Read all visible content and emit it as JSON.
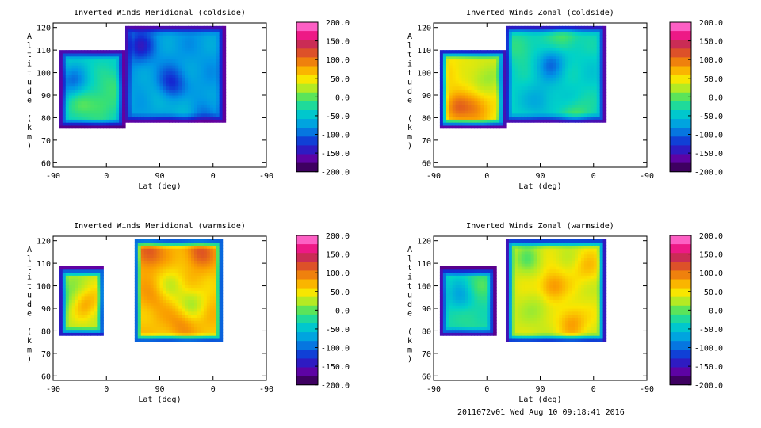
{
  "footer": "2011072v01 Wed Aug 10 09:18:41 2016",
  "chart_data": [
    {
      "type": "heatmap",
      "title": "Inverted Winds Meridional (coldside)",
      "xlabel": "Lat (deg)",
      "ylabel": "Altitude (km)",
      "x_ticks": [
        "-90",
        "0",
        "90",
        "0",
        "-90"
      ],
      "y_ticks": [
        60,
        70,
        80,
        90,
        100,
        110,
        120
      ],
      "ylim": [
        58,
        122
      ],
      "colorbar_ticks": [
        "200.0",
        "150.0",
        "100.0",
        "50.0",
        "0.0",
        "-50.0",
        "-100.0",
        "-150.0",
        "-200.0"
      ],
      "vmin": -200,
      "vmax": 200,
      "regions": [
        {
          "x": [
            -73,
            90
          ],
          "y": [
            76,
            110
          ],
          "base": -40,
          "anomalies": [
            [
              -40,
              96,
              -55
            ],
            [
              30,
              86,
              35
            ],
            [
              65,
              95,
              25
            ],
            [
              -20,
              86,
              30
            ]
          ]
        },
        {
          "x": [
            90,
            345
          ],
          "y": [
            78,
            121
          ],
          "base": -75,
          "anomalies": [
            [
              130,
              112,
              -60
            ],
            [
              210,
              95,
              -55
            ],
            [
              250,
              85,
              30
            ],
            [
              285,
              82,
              -30
            ],
            [
              170,
              90,
              20
            ]
          ]
        }
      ]
    },
    {
      "type": "heatmap",
      "title": "Inverted Winds Zonal (coldside)",
      "xlabel": "Lat (deg)",
      "ylabel": "Altitude (km)",
      "x_ticks": [
        "-90",
        "0",
        "90",
        "0",
        "-90"
      ],
      "y_ticks": [
        60,
        70,
        80,
        90,
        100,
        110,
        120
      ],
      "ylim": [
        58,
        122
      ],
      "colorbar_ticks": [
        "200.0",
        "150.0",
        "100.0",
        "50.0",
        "0.0",
        "-50.0",
        "-100.0",
        "-150.0",
        "-200.0"
      ],
      "vmin": -200,
      "vmax": 200,
      "regions": [
        {
          "x": [
            -73,
            90
          ],
          "y": [
            76,
            110
          ],
          "base": 40,
          "anomalies": [
            [
              -30,
              84,
              55
            ],
            [
              20,
              85,
              50
            ],
            [
              -45,
              100,
              20
            ],
            [
              40,
              98,
              -30
            ]
          ]
        },
        {
          "x": [
            90,
            345
          ],
          "y": [
            78,
            121
          ],
          "base": -40,
          "anomalies": [
            [
              210,
              104,
              -55
            ],
            [
              240,
              116,
              40
            ],
            [
              180,
              88,
              -30
            ],
            [
              270,
              80,
              40
            ],
            [
              130,
              112,
              30
            ]
          ]
        }
      ]
    },
    {
      "type": "heatmap",
      "title": "Inverted Winds Meridional (warmside)",
      "xlabel": "Lat (deg)",
      "ylabel": "Altitude (km)",
      "x_ticks": [
        "-90",
        "0",
        "90",
        "0",
        "-90"
      ],
      "y_ticks": [
        60,
        70,
        80,
        90,
        100,
        110,
        120
      ],
      "ylim": [
        58,
        122
      ],
      "colorbar_ticks": [
        "200.0",
        "150.0",
        "100.0",
        "50.0",
        "0.0",
        "-50.0",
        "-100.0",
        "-150.0",
        "-200.0"
      ],
      "vmin": -200,
      "vmax": 200,
      "regions": [
        {
          "x": [
            -73,
            40
          ],
          "y": [
            78,
            108
          ],
          "base": 25,
          "anomalies": [
            [
              -10,
              92,
              45
            ],
            [
              25,
              95,
              15
            ],
            [
              -55,
              95,
              -25
            ]
          ]
        },
        {
          "x": [
            115,
            340
          ],
          "y": [
            75,
            121
          ],
          "base": 65,
          "anomalies": [
            [
              150,
              115,
              55
            ],
            [
              280,
              115,
              50
            ],
            [
              210,
              100,
              -30
            ],
            [
              260,
              92,
              -45
            ],
            [
              240,
              84,
              30
            ],
            [
              165,
              95,
              20
            ]
          ]
        }
      ]
    },
    {
      "type": "heatmap",
      "title": "Inverted Winds Zonal (warmside)",
      "xlabel": "Lat (deg)",
      "ylabel": "Altitude (km)",
      "x_ticks": [
        "-90",
        "0",
        "90",
        "0",
        "-90"
      ],
      "y_ticks": [
        60,
        70,
        80,
        90,
        100,
        110,
        120
      ],
      "ylim": [
        58,
        122
      ],
      "colorbar_ticks": [
        "200.0",
        "150.0",
        "100.0",
        "50.0",
        "0.0",
        "-50.0",
        "-100.0",
        "-150.0",
        "-200.0"
      ],
      "vmin": -200,
      "vmax": 200,
      "regions": [
        {
          "x": [
            -73,
            65
          ],
          "y": [
            78,
            108
          ],
          "base": -30,
          "anomalies": [
            [
              -20,
              95,
              -40
            ],
            [
              30,
              100,
              20
            ],
            [
              10,
              88,
              15
            ]
          ]
        },
        {
          "x": [
            95,
            345
          ],
          "y": [
            75,
            121
          ],
          "base": 35,
          "anomalies": [
            [
              210,
              100,
              55
            ],
            [
              260,
              84,
              50
            ],
            [
              150,
              112,
              -30
            ],
            [
              300,
              108,
              30
            ],
            [
              180,
              90,
              -20
            ]
          ]
        }
      ]
    }
  ]
}
